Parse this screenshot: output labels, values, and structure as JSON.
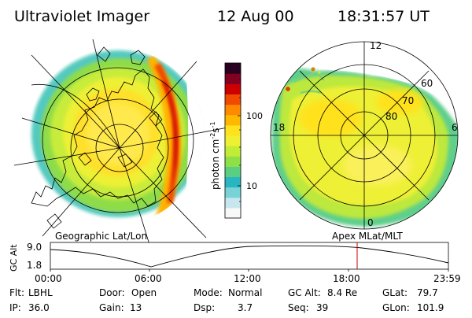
{
  "header": {
    "instrument": "Ultraviolet Imager",
    "date": "12 Aug 00",
    "time": "18:31:57 UT"
  },
  "left_panel": {
    "caption": "Geographic Lat/Lon"
  },
  "right_panel": {
    "caption": "Apex MLat/MLT",
    "mlt_labels": [
      "12",
      "18",
      "6",
      "0"
    ],
    "mlat_labels": [
      "80",
      "70",
      "60"
    ]
  },
  "colorbar": {
    "label_main": "photon cm",
    "label_sup1": "-2",
    "label_mid": "s",
    "label_sup2": "-1",
    "ticks": [
      "100",
      "10"
    ],
    "colors": [
      "#f8f8f8",
      "#c8e6ee",
      "#78d2d6",
      "#2ab6c0",
      "#5acf84",
      "#8fe046",
      "#c2ec36",
      "#eef032",
      "#ffe21e",
      "#ffb800",
      "#ff8a00",
      "#f04a00",
      "#cc0000",
      "#820022",
      "#2a0020"
    ]
  },
  "altitude_plot": {
    "ylabel": "GC Alt",
    "yticks": [
      "9.0",
      "1.8"
    ],
    "xticks": [
      "00:00",
      "06:00",
      "12:00",
      "18:00",
      "23:59"
    ],
    "marker_color": "#cc0000"
  },
  "info": {
    "row1": {
      "flt_label": "Flt:",
      "flt_value": "LBHL",
      "door_label": "Door:",
      "door_value": "Open",
      "mode_label": "Mode:",
      "mode_value": "Normal",
      "gcalt_label": "GC Alt:",
      "gcalt_value": "8.4 Re",
      "glat_label": "GLat:",
      "glat_value": "79.7"
    },
    "row2": {
      "ip_label": "IP:",
      "ip_value": "36.0",
      "gain_label": "Gain:",
      "gain_value": "13",
      "dsp_label": "Dsp:",
      "dsp_value": "3.7",
      "seq_label": "Seq:",
      "seq_value": "39",
      "glon_label": "GLon:",
      "glon_value": "101.9"
    }
  }
}
